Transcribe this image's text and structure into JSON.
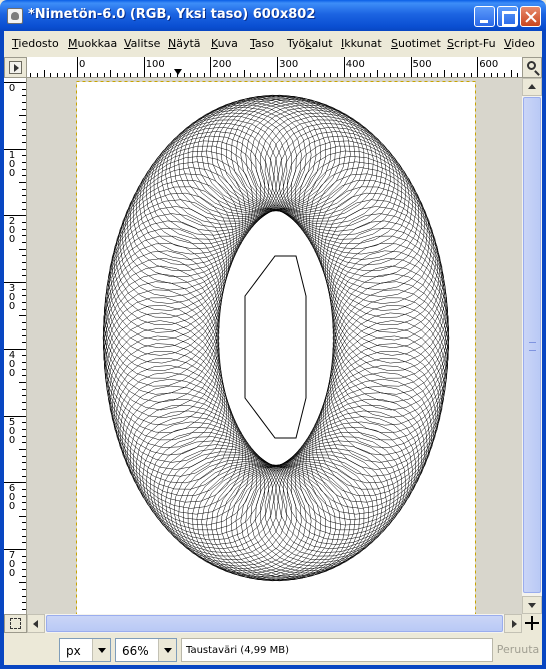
{
  "window": {
    "title": "*Nimetön-6.0 (RGB, Yksi taso) 600x802",
    "icon": "gimp-icon"
  },
  "menubar": {
    "items": [
      {
        "label": "Tiedosto",
        "ul": "T"
      },
      {
        "label": "Muokkaa",
        "ul": "M"
      },
      {
        "label": "Valitse",
        "ul": "V"
      },
      {
        "label": "Näytä",
        "ul": "N"
      },
      {
        "label": "Kuva",
        "ul": "K"
      },
      {
        "label": "Taso",
        "ul": "T"
      },
      {
        "label": "Työkalut",
        "ul": "k"
      },
      {
        "label": "Ikkunat",
        "ul": "I"
      },
      {
        "label": "Suotimet",
        "ul": "S"
      },
      {
        "label": "Script-Fu",
        "ul": "S"
      },
      {
        "label": "Video",
        "ul": "V"
      }
    ]
  },
  "ruler": {
    "h_labels": [
      "0",
      "100",
      "200",
      "300",
      "400",
      "500",
      "600"
    ],
    "v_labels": [
      "0",
      "100",
      "200",
      "300",
      "400",
      "500",
      "600",
      "700"
    ]
  },
  "statusbar": {
    "unit": "px",
    "zoom": "66%",
    "message": "Taustaväri (4,99 MB)",
    "cancel": "Peruuta"
  },
  "colors": {
    "titlebar": "#0a4fd2",
    "canvas_bg": "#ffffff",
    "drawing": "#000000",
    "workspace": "#d8d6cc"
  }
}
